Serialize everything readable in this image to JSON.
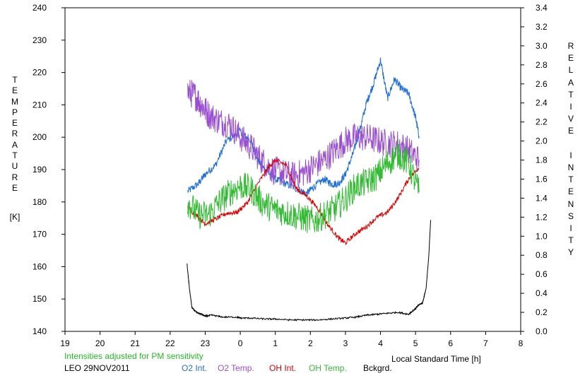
{
  "colors": {
    "o2_int": "#1f6fd8",
    "o2_temp": "#9a4fd0",
    "oh_int": "#e00000",
    "oh_temp": "#33bb33",
    "background": "#000000",
    "note": "#22bb22"
  },
  "chart_data": {
    "type": "line",
    "title": "",
    "xlabel": "Local Standard Time [h]",
    "ylabel_left_text": "TEMPERATURE",
    "ylabel_left_unit": "[K]",
    "ylabel_right_text": "RELATIVE INTENSITY",
    "xlim": [
      19,
      32
    ],
    "x_ticks": [
      "19",
      "20",
      "21",
      "22",
      "23",
      "0",
      "1",
      "2",
      "3",
      "4",
      "5",
      "6",
      "7",
      "8"
    ],
    "ylim_left": [
      140,
      240
    ],
    "y_ticks_left": [
      "140",
      "150",
      "160",
      "170",
      "180",
      "190",
      "200",
      "210",
      "220",
      "230",
      "240"
    ],
    "ylim_right": [
      0.0,
      3.4
    ],
    "y_ticks_right": [
      "0.0",
      "0.2",
      "0.4",
      "0.6",
      "0.8",
      "1.0",
      "1.2",
      "1.4",
      "1.6",
      "1.8",
      "2.0",
      "2.2",
      "2.4",
      "2.6",
      "2.8",
      "3.0",
      "3.2",
      "3.4"
    ],
    "grid": false,
    "note": "Intensities adjusted for PM sensitivity",
    "station_date": "LEO 29NOV2011",
    "legend": [
      "O2 Int.",
      "O2 Temp.",
      "OH Int.",
      "OH Temp.",
      "Bckgrd."
    ],
    "series": [
      {
        "name": "O2 Int.",
        "axis": "right",
        "color_key": "o2_int",
        "x": [
          22.5,
          22.8,
          23.0,
          23.3,
          23.6,
          24.0,
          24.3,
          24.5,
          24.7,
          25.0,
          25.3,
          25.6,
          25.9,
          26.1,
          26.4,
          26.6,
          26.8,
          27.0,
          27.2,
          27.4,
          27.6,
          27.8,
          28.0,
          28.2,
          28.4,
          28.6,
          28.8,
          29.0,
          29.1
        ],
        "y": [
          1.47,
          1.55,
          1.65,
          1.75,
          2.0,
          2.1,
          2.0,
          1.8,
          1.7,
          1.6,
          1.55,
          1.5,
          1.45,
          1.52,
          1.6,
          1.55,
          1.55,
          1.65,
          1.85,
          2.1,
          2.4,
          2.6,
          2.85,
          2.45,
          2.65,
          2.55,
          2.5,
          2.25,
          2.05
        ]
      },
      {
        "name": "O2 Temp.",
        "axis": "left",
        "color_key": "o2_temp",
        "x": [
          22.5,
          22.7,
          22.9,
          23.1,
          23.4,
          23.7,
          24.0,
          24.3,
          24.6,
          24.9,
          25.2,
          25.5,
          25.8,
          26.1,
          26.4,
          26.7,
          27.0,
          27.3,
          27.6,
          27.9,
          28.2,
          28.5,
          28.8,
          29.1
        ],
        "y": [
          214,
          213,
          210,
          207,
          205,
          204,
          200,
          197,
          193,
          190,
          189,
          188,
          189,
          191,
          193,
          196,
          199,
          200,
          200,
          199,
          198,
          198,
          196,
          193
        ]
      },
      {
        "name": "OH Int.",
        "axis": "right",
        "color_key": "oh_int",
        "x": [
          22.5,
          22.8,
          23.0,
          23.3,
          23.6,
          23.9,
          24.2,
          24.5,
          24.8,
          25.0,
          25.3,
          25.6,
          25.9,
          26.2,
          26.5,
          26.8,
          27.0,
          27.3,
          27.6,
          27.9,
          28.2,
          28.5,
          28.8,
          29.1
        ],
        "y": [
          1.3,
          1.2,
          1.13,
          1.18,
          1.24,
          1.25,
          1.35,
          1.55,
          1.72,
          1.8,
          1.75,
          1.5,
          1.42,
          1.3,
          1.12,
          0.98,
          0.93,
          1.03,
          1.1,
          1.2,
          1.25,
          1.4,
          1.6,
          1.72
        ]
      },
      {
        "name": "OH Temp.",
        "axis": "left",
        "color_key": "oh_temp",
        "x": [
          22.5,
          22.8,
          23.1,
          23.4,
          23.7,
          24.0,
          24.3,
          24.6,
          24.9,
          25.2,
          25.5,
          25.8,
          26.1,
          26.4,
          26.7,
          27.0,
          27.3,
          27.6,
          27.9,
          28.2,
          28.5,
          28.8,
          29.1
        ],
        "y": [
          180,
          176,
          176,
          180,
          183,
          185,
          184,
          180,
          178,
          177,
          176,
          175,
          174,
          176,
          178,
          181,
          185,
          186,
          188,
          192,
          195,
          192,
          183
        ]
      },
      {
        "name": "Bckgrd.",
        "axis": "right",
        "color_key": "background",
        "x": [
          22.48,
          22.55,
          22.62,
          22.75,
          22.9,
          23.0,
          23.2,
          23.5,
          23.9,
          24.0,
          24.3,
          24.7,
          25.0,
          25.4,
          25.8,
          26.2,
          26.6,
          27.0,
          27.3,
          27.6,
          27.9,
          28.2,
          28.5,
          28.8,
          29.0,
          29.1,
          29.2,
          29.3,
          29.38,
          29.43
        ],
        "y": [
          0.71,
          0.45,
          0.25,
          0.2,
          0.18,
          0.16,
          0.17,
          0.15,
          0.15,
          0.14,
          0.14,
          0.13,
          0.13,
          0.12,
          0.12,
          0.12,
          0.13,
          0.14,
          0.15,
          0.17,
          0.18,
          0.19,
          0.2,
          0.18,
          0.24,
          0.28,
          0.3,
          0.45,
          0.8,
          1.17
        ]
      }
    ]
  }
}
